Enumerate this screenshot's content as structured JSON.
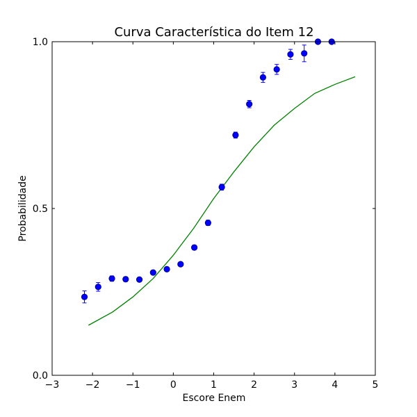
{
  "chart_data": {
    "type": "scatter",
    "title": "Curva Característica do Item 12",
    "xlabel": "Escore Enem",
    "ylabel": "Probabilidade",
    "xlim": [
      -3,
      5
    ],
    "ylim": [
      0,
      1
    ],
    "x_ticks": [
      -3,
      -2,
      -1,
      0,
      1,
      2,
      3,
      4,
      5
    ],
    "x_tick_labels": [
      "−3",
      "−2",
      "−1",
      "0",
      "1",
      "2",
      "3",
      "4",
      "5"
    ],
    "y_ticks": [
      0,
      0.5,
      1
    ],
    "y_tick_labels": [
      "0.0",
      "0.5",
      "1.0"
    ],
    "grid": false,
    "colors": {
      "points": "#0000ff",
      "points_edge": "#000080",
      "curve": "#008000"
    },
    "series": [
      {
        "type": "scatter_errorbar",
        "x": [
          -2.2,
          -1.86,
          -1.52,
          -1.18,
          -0.84,
          -0.5,
          -0.16,
          0.18,
          0.52,
          0.86,
          1.2,
          1.54,
          1.88,
          2.22,
          2.56,
          2.9,
          3.24,
          3.58,
          3.92
        ],
        "y": [
          0.235,
          0.265,
          0.29,
          0.288,
          0.287,
          0.308,
          0.318,
          0.333,
          0.383,
          0.457,
          0.564,
          0.72,
          0.813,
          0.893,
          0.917,
          0.962,
          0.965,
          1.0,
          1.0
        ],
        "yerr": [
          0.018,
          0.013,
          0.008,
          0.007,
          0.006,
          0.006,
          0.006,
          0.006,
          0.007,
          0.008,
          0.009,
          0.009,
          0.011,
          0.015,
          0.015,
          0.015,
          0.025,
          0.004,
          0.004
        ]
      },
      {
        "type": "line",
        "x": [
          -2.1,
          -1.5,
          -1.0,
          -0.5,
          0.0,
          0.5,
          1.0,
          1.5,
          2.0,
          2.5,
          3.0,
          3.5,
          4.0,
          4.5
        ],
        "y": [
          0.15,
          0.19,
          0.235,
          0.29,
          0.36,
          0.44,
          0.53,
          0.61,
          0.685,
          0.75,
          0.8,
          0.845,
          0.872,
          0.895
        ]
      }
    ]
  }
}
